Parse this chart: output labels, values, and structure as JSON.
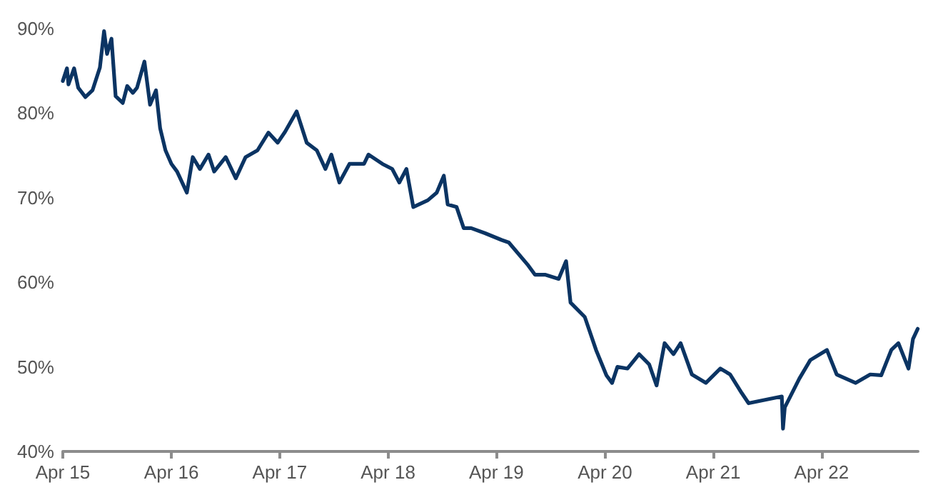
{
  "chart_data": {
    "type": "line",
    "color": "#0b3463",
    "x": [
      "2015-04-01",
      "2015-04-15",
      "2015-04-20",
      "2015-05-09",
      "2015-05-23",
      "2015-06-16",
      "2015-07-10",
      "2015-08-04",
      "2015-08-18",
      "2015-08-28",
      "2015-09-12",
      "2015-09-26",
      "2015-10-20",
      "2015-11-04",
      "2015-11-23",
      "2015-12-07",
      "2016-01-01",
      "2016-01-20",
      "2016-02-09",
      "2016-02-23",
      "2016-03-12",
      "2016-04-01",
      "2016-04-20",
      "2016-05-23",
      "2016-06-12",
      "2016-07-06",
      "2016-08-04",
      "2016-08-23",
      "2016-10-01",
      "2016-11-04",
      "2016-12-07",
      "2017-01-16",
      "2017-02-22",
      "2017-03-25",
      "2017-04-19",
      "2017-05-28",
      "2017-07-01",
      "2017-08-04",
      "2017-09-02",
      "2017-09-22",
      "2017-10-19",
      "2017-11-22",
      "2018-01-10",
      "2018-01-25",
      "2018-03-13",
      "2018-04-15",
      "2018-05-09",
      "2018-06-02",
      "2018-06-25",
      "2018-08-13",
      "2018-09-12",
      "2018-10-06",
      "2018-10-19",
      "2018-11-18",
      "2018-12-12",
      "2019-01-06",
      "2019-02-22",
      "2019-04-19",
      "2019-05-13",
      "2019-07-15",
      "2019-08-09",
      "2019-09-12",
      "2019-10-28",
      "2019-11-22",
      "2019-12-07",
      "2020-01-24",
      "2020-03-02",
      "2020-04-06",
      "2020-04-25",
      "2020-05-13",
      "2020-06-16",
      "2020-07-25",
      "2020-08-28",
      "2020-09-22",
      "2020-10-19",
      "2020-11-18",
      "2020-12-12",
      "2021-01-19",
      "2021-03-07",
      "2021-04-25",
      "2021-05-28",
      "2021-07-06",
      "2021-07-29",
      "2021-11-18",
      "2021-11-22",
      "2021-11-28",
      "2022-01-16",
      "2022-02-22",
      "2022-04-19",
      "2022-05-22",
      "2022-07-25",
      "2022-09-12",
      "2022-10-19",
      "2022-11-22",
      "2022-12-16",
      "2023-01-19",
      "2023-02-03",
      "2023-02-19"
    ],
    "values": [
      83.8,
      85.3,
      83.4,
      85.3,
      83,
      81.9,
      82.7,
      85.4,
      89.7,
      87,
      88.8,
      82,
      81.2,
      83.2,
      82.4,
      83,
      86.1,
      81,
      82.7,
      78.2,
      75.6,
      74,
      73.1,
      70.6,
      74.8,
      73.4,
      75.1,
      73.1,
      74.8,
      72.3,
      74.8,
      75.6,
      77.7,
      76.5,
      77.8,
      80.2,
      76.5,
      75.6,
      73.4,
      75.1,
      71.8,
      74,
      74,
      75.1,
      74,
      73.4,
      71.8,
      73.4,
      68.9,
      69.7,
      70.6,
      72.6,
      69.2,
      68.9,
      66.4,
      66.4,
      65.8,
      65,
      64.7,
      62.1,
      60.9,
      60.9,
      60.4,
      62.5,
      57.6,
      55.9,
      52,
      49,
      48.1,
      50,
      49.8,
      51.5,
      50.3,
      47.8,
      52.8,
      51.5,
      52.8,
      49.1,
      48.1,
      49.8,
      49.1,
      46.9,
      45.7,
      46.5,
      42.7,
      45.2,
      48.6,
      50.8,
      52,
      49.1,
      48.1,
      49.1,
      49,
      52,
      52.8,
      49.8,
      53.3,
      54.5
    ],
    "xlim": [
      "2015-04-01",
      "2023-02-20"
    ],
    "xticks": [
      {
        "value": "2015-04-01",
        "label": "Apr 15"
      },
      {
        "value": "2016-04-01",
        "label": "Apr 16"
      },
      {
        "value": "2017-04-01",
        "label": "Apr 17"
      },
      {
        "value": "2018-04-01",
        "label": "Apr 18"
      },
      {
        "value": "2019-04-01",
        "label": "Apr 19"
      },
      {
        "value": "2020-04-01",
        "label": "Apr 20"
      },
      {
        "value": "2021-04-01",
        "label": "Apr 21"
      },
      {
        "value": "2022-04-01",
        "label": "Apr 22"
      }
    ],
    "ylim": [
      40,
      90
    ],
    "yticks": [
      {
        "value": 40,
        "label": "40%"
      },
      {
        "value": 50,
        "label": "50%"
      },
      {
        "value": 60,
        "label": "60%"
      },
      {
        "value": 70,
        "label": "70%"
      },
      {
        "value": 80,
        "label": "80%"
      },
      {
        "value": 90,
        "label": "90%"
      }
    ],
    "grid": false,
    "marker": "none",
    "line_style": "solid"
  }
}
